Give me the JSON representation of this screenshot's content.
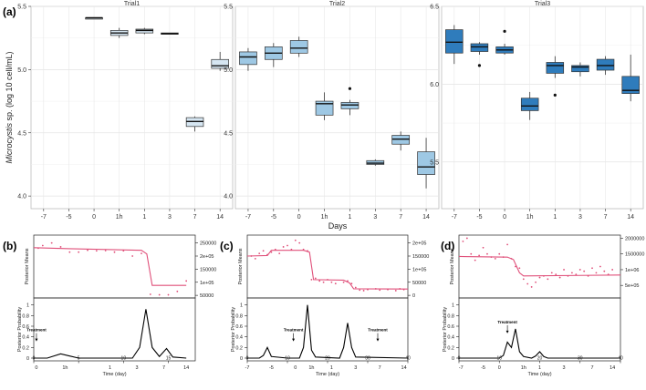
{
  "figure": {
    "panel_labels": [
      "(a)",
      "(b)",
      "(c)",
      "(d)"
    ]
  },
  "colors": {
    "panel_bg": "#ebebeb",
    "grid": "#ffffff",
    "strip_bg": "#d9d9d9",
    "trial1_fill": "#d6e6f2",
    "trial2_fill": "#9ec8e4",
    "trial3_fill": "#2f7cbc",
    "posterior_mean": "#e0507a",
    "probability": "#000000"
  },
  "chart_data": [
    {
      "type": "box",
      "panel": "(a)",
      "ylabel_italic": "Microcystis",
      "ylabel_rest": " sp. (log 10 cell/mL)",
      "xlabel": "Days",
      "ylim": [
        3.9,
        5.5
      ],
      "ylim_trial3": [
        5.2,
        6.5
      ],
      "yticks": [
        "4.0",
        "4.5",
        "5.0",
        "5.5"
      ],
      "yticks_trial3": [
        "5.5",
        "6.0",
        "6.5"
      ],
      "categories": [
        "-7",
        "-5",
        "0",
        "1h",
        "1",
        "3",
        "7",
        "14"
      ],
      "facets": [
        {
          "name": "Trial1",
          "boxes": [
            {
              "cat": "0",
              "q1": 5.4,
              "med": 5.41,
              "q3": 5.41,
              "lo": 5.4,
              "hi": 5.41,
              "outliers": []
            },
            {
              "cat": "1h",
              "q1": 5.27,
              "med": 5.29,
              "q3": 5.31,
              "lo": 5.25,
              "hi": 5.33,
              "outliers": []
            },
            {
              "cat": "1",
              "q1": 5.29,
              "med": 5.31,
              "q3": 5.32,
              "lo": 5.28,
              "hi": 5.33,
              "outliers": []
            },
            {
              "cat": "3",
              "q1": 5.28,
              "med": 5.285,
              "q3": 5.29,
              "lo": 5.28,
              "hi": 5.29,
              "outliers": []
            },
            {
              "cat": "7",
              "q1": 4.55,
              "med": 4.59,
              "q3": 4.62,
              "lo": 4.51,
              "hi": 4.63,
              "outliers": []
            },
            {
              "cat": "14",
              "q1": 5.01,
              "med": 5.03,
              "q3": 5.08,
              "lo": 4.99,
              "hi": 5.14,
              "outliers": []
            }
          ]
        },
        {
          "name": "Trial2",
          "boxes": [
            {
              "cat": "-7",
              "q1": 5.04,
              "med": 5.1,
              "q3": 5.14,
              "lo": 4.99,
              "hi": 5.17,
              "outliers": []
            },
            {
              "cat": "-5",
              "q1": 5.08,
              "med": 5.13,
              "q3": 5.18,
              "lo": 5.02,
              "hi": 5.21,
              "outliers": []
            },
            {
              "cat": "0",
              "q1": 5.13,
              "med": 5.17,
              "q3": 5.23,
              "lo": 5.1,
              "hi": 5.26,
              "outliers": []
            },
            {
              "cat": "1h",
              "q1": 4.64,
              "med": 4.73,
              "q3": 4.75,
              "lo": 4.6,
              "hi": 4.82,
              "outliers": []
            },
            {
              "cat": "1",
              "q1": 4.69,
              "med": 4.72,
              "q3": 4.74,
              "lo": 4.64,
              "hi": 4.76,
              "outliers": [
                4.85
              ]
            },
            {
              "cat": "3",
              "q1": 4.25,
              "med": 4.26,
              "q3": 4.28,
              "lo": 4.24,
              "hi": 4.29,
              "outliers": []
            },
            {
              "cat": "7",
              "q1": 4.41,
              "med": 4.45,
              "q3": 4.48,
              "lo": 4.36,
              "hi": 4.51,
              "outliers": []
            },
            {
              "cat": "14",
              "q1": 4.17,
              "med": 4.23,
              "q3": 4.35,
              "lo": 4.06,
              "hi": 4.46,
              "outliers": []
            }
          ]
        },
        {
          "name": "Trial3",
          "boxes": [
            {
              "cat": "-7",
              "q1": 6.2,
              "med": 6.27,
              "q3": 6.35,
              "lo": 6.13,
              "hi": 6.38,
              "outliers": []
            },
            {
              "cat": "-5",
              "q1": 6.21,
              "med": 6.24,
              "q3": 6.26,
              "lo": 6.19,
              "hi": 6.27,
              "outliers": [
                6.12
              ]
            },
            {
              "cat": "0",
              "q1": 6.2,
              "med": 6.22,
              "q3": 6.24,
              "lo": 6.19,
              "hi": 6.26,
              "outliers": [
                6.34
              ]
            },
            {
              "cat": "1h",
              "q1": 5.83,
              "med": 5.86,
              "q3": 5.91,
              "lo": 5.77,
              "hi": 5.95,
              "outliers": []
            },
            {
              "cat": "1",
              "q1": 6.07,
              "med": 6.12,
              "q3": 6.14,
              "lo": 6.04,
              "hi": 6.18,
              "outliers": [
                5.93
              ]
            },
            {
              "cat": "3",
              "q1": 6.08,
              "med": 6.11,
              "q3": 6.12,
              "lo": 6.05,
              "hi": 6.14,
              "outliers": []
            },
            {
              "cat": "7",
              "q1": 6.09,
              "med": 6.12,
              "q3": 6.16,
              "lo": 6.06,
              "hi": 6.18,
              "outliers": []
            },
            {
              "cat": "14",
              "q1": 5.94,
              "med": 5.96,
              "q3": 6.05,
              "lo": 5.89,
              "hi": 6.19,
              "outliers": []
            }
          ]
        }
      ]
    },
    {
      "type": "changepoint",
      "panel": "(b)",
      "top_ylabel": "Posterior Means",
      "bottom_ylabel": "Posterior Probability",
      "xlabel": "Time (day)",
      "xlim": [
        0,
        18
      ],
      "top_ylim": [
        40000,
        280000
      ],
      "top_yticks": [
        {
          "v": 50000,
          "label": "50000"
        },
        {
          "v": 100000,
          "label": "1e+05"
        },
        {
          "v": 150000,
          "label": "150000"
        },
        {
          "v": 200000,
          "label": "2e+05"
        },
        {
          "v": 250000,
          "label": "250000"
        }
      ],
      "bottom_yticks": [
        "0",
        "0.2",
        "0.4",
        "0.6",
        "0.8",
        "1"
      ],
      "xticks_numeric": [
        {
          "v": 0,
          "label": "0"
        },
        {
          "v": 5,
          "label": "5"
        },
        {
          "v": 10,
          "label": "10"
        },
        {
          "v": 15,
          "label": "15"
        }
      ],
      "xticks_days": [
        {
          "v": 0.3,
          "label": "0"
        },
        {
          "v": 3.5,
          "label": "1h"
        },
        {
          "v": 8.5,
          "label": "1"
        },
        {
          "v": 11.5,
          "label": "3"
        },
        {
          "v": 14.5,
          "label": "7"
        },
        {
          "v": 17,
          "label": "14"
        }
      ],
      "treatment_label": "Treatment",
      "treatment_x": 0.3,
      "treatment_y": 0.4,
      "mean_points": [
        [
          0.5,
          230000
        ],
        [
          1,
          240000
        ],
        [
          2,
          250000
        ],
        [
          3,
          235000
        ],
        [
          4,
          215000
        ],
        [
          5,
          215000
        ],
        [
          6,
          222000
        ],
        [
          7,
          220000
        ],
        [
          8,
          221000
        ],
        [
          9,
          215000
        ],
        [
          10,
          220000
        ],
        [
          11,
          200000
        ],
        [
          12,
          210000
        ],
        [
          13,
          54000
        ],
        [
          14,
          52000
        ],
        [
          15,
          52000
        ],
        [
          16,
          65000
        ],
        [
          17,
          105000
        ]
      ],
      "mean_line": [
        [
          0,
          232000
        ],
        [
          4,
          228000
        ],
        [
          12,
          222000
        ],
        [
          12.6,
          208000
        ],
        [
          13.2,
          88000
        ],
        [
          17,
          88000
        ]
      ],
      "prob_line": [
        [
          0,
          0
        ],
        [
          1.5,
          0
        ],
        [
          3,
          0.08
        ],
        [
          4,
          0.04
        ],
        [
          5,
          0
        ],
        [
          11,
          0
        ],
        [
          11.8,
          0.2
        ],
        [
          12.5,
          0.92
        ],
        [
          13.2,
          0.2
        ],
        [
          14,
          0.03
        ],
        [
          14.8,
          0.18
        ],
        [
          15.5,
          0.02
        ],
        [
          17,
          0
        ]
      ]
    },
    {
      "type": "changepoint",
      "panel": "(c)",
      "top_ylabel": "Posterior Means",
      "bottom_ylabel": "Posterior Probability",
      "xlabel": "Time (day)",
      "xlim": [
        0,
        40
      ],
      "top_ylim": [
        -10000,
        230000
      ],
      "top_yticks": [
        {
          "v": 0,
          "label": "0"
        },
        {
          "v": 50000,
          "label": "50000"
        },
        {
          "v": 100000,
          "label": "1e+05"
        },
        {
          "v": 150000,
          "label": "150000"
        },
        {
          "v": 200000,
          "label": "2e+05"
        }
      ],
      "bottom_yticks": [
        "0",
        "0.2",
        "0.4",
        "0.6",
        "0.8",
        "1"
      ],
      "xticks_numeric": [
        {
          "v": 0,
          "label": "0"
        },
        {
          "v": 10,
          "label": "10"
        },
        {
          "v": 20,
          "label": "20"
        },
        {
          "v": 30,
          "label": "30"
        },
        {
          "v": 40,
          "label": "40"
        }
      ],
      "xticks_days": [
        {
          "v": 0,
          "label": "-7"
        },
        {
          "v": 6,
          "label": "-5"
        },
        {
          "v": 12,
          "label": "0"
        },
        {
          "v": 16,
          "label": "1h"
        },
        {
          "v": 21,
          "label": "1"
        },
        {
          "v": 27,
          "label": "3"
        },
        {
          "v": 33,
          "label": "7"
        },
        {
          "v": 39,
          "label": "14"
        }
      ],
      "treatment_label": "Treatment",
      "treatment_x": 11.5,
      "treatment_y": 0.4,
      "treatment2_x": 32.5,
      "treatment2_y": 0.4,
      "mean_points": [
        [
          1,
          150000
        ],
        [
          2,
          140000
        ],
        [
          3,
          160000
        ],
        [
          4,
          170000
        ],
        [
          5,
          155000
        ],
        [
          6,
          165000
        ],
        [
          7,
          175000
        ],
        [
          8,
          160000
        ],
        [
          9,
          185000
        ],
        [
          10,
          190000
        ],
        [
          11,
          175000
        ],
        [
          12,
          210000
        ],
        [
          13,
          200000
        ],
        [
          14,
          175000
        ],
        [
          15,
          170000
        ],
        [
          16,
          60000
        ],
        [
          17,
          65000
        ],
        [
          18,
          55000
        ],
        [
          19,
          50000
        ],
        [
          20,
          60000
        ],
        [
          21,
          50000
        ],
        [
          22,
          45000
        ],
        [
          24,
          50000
        ],
        [
          25,
          55000
        ],
        [
          26,
          45000
        ],
        [
          27,
          30000
        ],
        [
          28,
          20000
        ],
        [
          29,
          18000
        ],
        [
          30,
          22000
        ],
        [
          32,
          25000
        ],
        [
          33,
          20000
        ],
        [
          35,
          22000
        ],
        [
          37,
          18000
        ],
        [
          38,
          25000
        ],
        [
          39,
          22000
        ]
      ],
      "mean_line": [
        [
          0,
          150000
        ],
        [
          5,
          152000
        ],
        [
          6,
          172000
        ],
        [
          14,
          172000
        ],
        [
          15.5,
          165000
        ],
        [
          16.5,
          60000
        ],
        [
          24,
          58000
        ],
        [
          25.5,
          47000
        ],
        [
          26.5,
          25000
        ],
        [
          40,
          24000
        ]
      ],
      "prob_line": [
        [
          0,
          0
        ],
        [
          3,
          0
        ],
        [
          4,
          0.05
        ],
        [
          5,
          0.2
        ],
        [
          6,
          0.03
        ],
        [
          10,
          0
        ],
        [
          13,
          0
        ],
        [
          14,
          0.2
        ],
        [
          15,
          1.0
        ],
        [
          16,
          0.15
        ],
        [
          17,
          0.02
        ],
        [
          23,
          0
        ],
        [
          24,
          0.2
        ],
        [
          25,
          0.66
        ],
        [
          26,
          0.2
        ],
        [
          27,
          0.02
        ],
        [
          40,
          0
        ]
      ]
    },
    {
      "type": "changepoint",
      "panel": "(d)",
      "top_ylabel": "Posterior Means",
      "bottom_ylabel": "Posterior Probability",
      "xlabel": "Time (day)",
      "xlim": [
        0,
        40
      ],
      "top_ylim": [
        100000,
        2100000
      ],
      "top_yticks": [
        {
          "v": 500000,
          "label": "5e+05"
        },
        {
          "v": 1000000,
          "label": "1e+06"
        },
        {
          "v": 1500000,
          "label": "1500000"
        },
        {
          "v": 2000000,
          "label": "2000000"
        }
      ],
      "bottom_yticks": [
        "0",
        "0.2",
        "0.4",
        "0.6",
        "0.8",
        "1"
      ],
      "xticks_numeric": [
        {
          "v": 0,
          "label": "0"
        },
        {
          "v": 10,
          "label": "10"
        },
        {
          "v": 20,
          "label": "20"
        },
        {
          "v": 30,
          "label": "30"
        },
        {
          "v": 40,
          "label": "40"
        }
      ],
      "xticks_days": [
        {
          "v": 0.5,
          "label": "-7"
        },
        {
          "v": 6,
          "label": "-5"
        },
        {
          "v": 10,
          "label": "0"
        },
        {
          "v": 16,
          "label": "1h"
        },
        {
          "v": 20,
          "label": "1"
        },
        {
          "v": 26,
          "label": "3"
        },
        {
          "v": 33,
          "label": "7"
        },
        {
          "v": 38,
          "label": "14"
        }
      ],
      "treatment_label": "Treatment",
      "treatment_x": 12,
      "treatment_y": 0.55,
      "mean_points": [
        [
          1,
          1900000
        ],
        [
          2,
          2000000
        ],
        [
          3,
          1500000
        ],
        [
          4,
          1300000
        ],
        [
          5,
          1450000
        ],
        [
          6,
          1700000
        ],
        [
          7,
          1500000
        ],
        [
          8,
          1400000
        ],
        [
          9,
          1350000
        ],
        [
          10,
          1500000
        ],
        [
          11,
          1400000
        ],
        [
          12,
          1800000
        ],
        [
          13,
          1350000
        ],
        [
          14,
          1100000
        ],
        [
          15,
          1050000
        ],
        [
          16,
          700000
        ],
        [
          17,
          550000
        ],
        [
          18,
          450000
        ],
        [
          19,
          600000
        ],
        [
          20,
          750000
        ],
        [
          21,
          800000
        ],
        [
          22,
          700000
        ],
        [
          23,
          900000
        ],
        [
          24,
          850000
        ],
        [
          25,
          750000
        ],
        [
          26,
          1000000
        ],
        [
          27,
          800000
        ],
        [
          28,
          900000
        ],
        [
          29,
          850000
        ],
        [
          30,
          1000000
        ],
        [
          31,
          950000
        ],
        [
          32,
          800000
        ],
        [
          33,
          1050000
        ],
        [
          34,
          900000
        ],
        [
          35,
          1100000
        ],
        [
          36,
          950000
        ],
        [
          37,
          850000
        ],
        [
          38,
          1000000
        ]
      ],
      "mean_line": [
        [
          0,
          1420000
        ],
        [
          12,
          1400000
        ],
        [
          13.5,
          1320000
        ],
        [
          15,
          900000
        ],
        [
          16,
          800000
        ],
        [
          40,
          830000
        ]
      ],
      "prob_line": [
        [
          0,
          0
        ],
        [
          10,
          0
        ],
        [
          11,
          0.05
        ],
        [
          12,
          0.3
        ],
        [
          13,
          0.2
        ],
        [
          14,
          0.55
        ],
        [
          15,
          0.12
        ],
        [
          16,
          0.03
        ],
        [
          18,
          0
        ],
        [
          19,
          0.04
        ],
        [
          20,
          0.12
        ],
        [
          21,
          0.03
        ],
        [
          22,
          0
        ],
        [
          40,
          0
        ]
      ]
    }
  ]
}
